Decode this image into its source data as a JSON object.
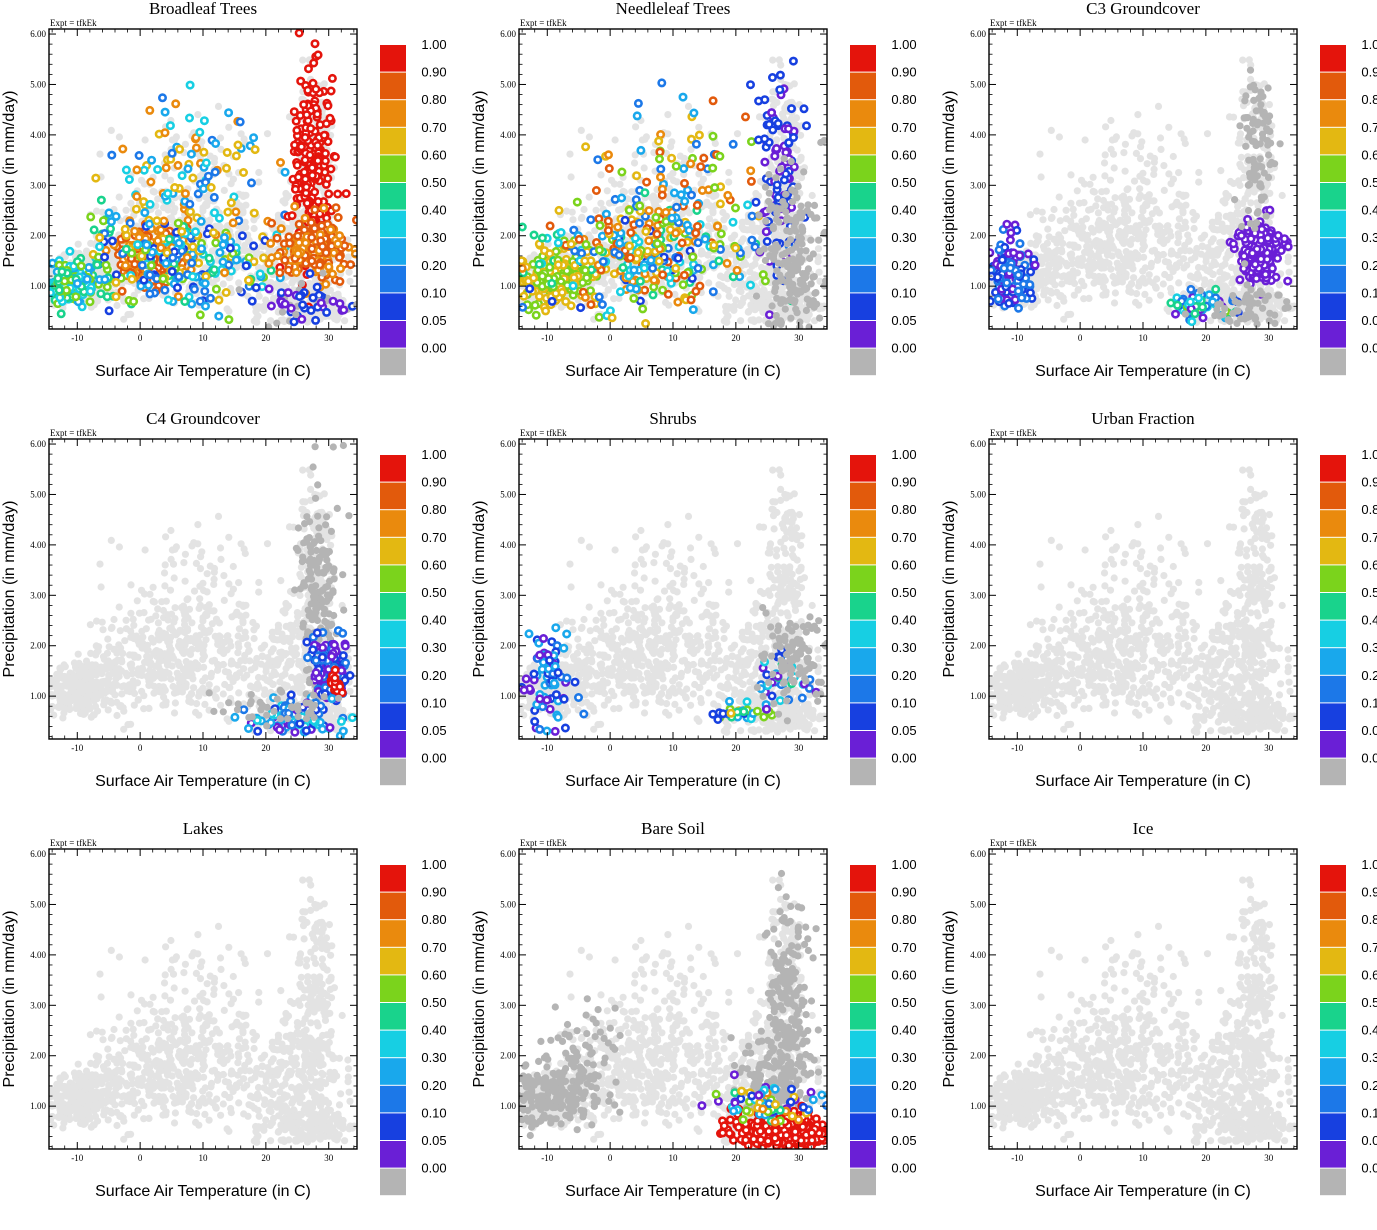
{
  "figure": {
    "expt_label": "Expt = tfkEk",
    "xlabel": "Surface Air Temperature (in C)",
    "ylabel": "Precipitation (in mm/day)"
  },
  "colorbar": {
    "levels": [
      "0.00",
      "0.05",
      "0.10",
      "0.20",
      "0.30",
      "0.40",
      "0.50",
      "0.60",
      "0.70",
      "0.80",
      "0.90",
      "1.00"
    ],
    "colors": [
      "#b4b4b4",
      "#6a1fd6",
      "#1740e0",
      "#1c78e8",
      "#19a8ec",
      "#17cfe3",
      "#19d38c",
      "#7bd31c",
      "#e3b812",
      "#ea8a0d",
      "#e25a0c",
      "#e4140c"
    ],
    "background_point_color": "#e3e3e3"
  },
  "chart_data": [
    {
      "type": "scatter",
      "title": "Broadleaf Trees",
      "xlim": [
        -14.5,
        34.5
      ],
      "ylim": [
        0.15,
        6.1
      ],
      "xticks": [
        -10,
        0,
        10,
        20,
        30
      ],
      "yticks": [
        "1.00",
        "2.00",
        "3.00",
        "4.00",
        "5.00",
        "6.00"
      ],
      "clusters": [
        {
          "x": -11,
          "y": 1.05,
          "sx": 2.5,
          "sy": 0.22,
          "n": 180,
          "colors": [
            4,
            5,
            6,
            7
          ]
        },
        {
          "x": 2,
          "y": 1.6,
          "sx": 2.8,
          "sy": 0.3,
          "n": 260,
          "colors": [
            9,
            10
          ]
        },
        {
          "x": 6,
          "y": 1.5,
          "sx": 8,
          "sy": 0.5,
          "n": 220,
          "colors": [
            2,
            3,
            4,
            5,
            6,
            7,
            8
          ]
        },
        {
          "x": 8,
          "y": 3.0,
          "sx": 6,
          "sy": 0.9,
          "n": 120,
          "colors": [
            3,
            4,
            5,
            8,
            9
          ]
        },
        {
          "x": 27.5,
          "y": 3.2,
          "sx": 1.6,
          "sy": 1.0,
          "n": 220,
          "colors": [
            11
          ]
        },
        {
          "x": 28,
          "y": 1.7,
          "sx": 2.8,
          "sy": 0.3,
          "n": 200,
          "colors": [
            9,
            10
          ]
        },
        {
          "x": 26,
          "y": 0.7,
          "sx": 3.5,
          "sy": 0.25,
          "n": 60,
          "colors": [
            0,
            1,
            2
          ]
        }
      ]
    },
    {
      "type": "scatter",
      "title": "Needleleaf Trees",
      "xlim": [
        -14.5,
        34.5
      ],
      "ylim": [
        0.15,
        6.1
      ],
      "xticks": [
        -10,
        0,
        10,
        20,
        30
      ],
      "yticks": [
        "1.00",
        "2.00",
        "3.00",
        "4.00",
        "5.00",
        "6.00"
      ],
      "clusters": [
        {
          "x": -9,
          "y": 1.15,
          "sx": 3.2,
          "sy": 0.25,
          "n": 240,
          "colors": [
            7,
            8
          ]
        },
        {
          "x": 5,
          "y": 1.6,
          "sx": 9,
          "sy": 0.55,
          "n": 260,
          "colors": [
            2,
            3,
            4,
            5,
            6,
            7,
            8,
            9,
            10
          ]
        },
        {
          "x": 10,
          "y": 2.9,
          "sx": 6,
          "sy": 0.9,
          "n": 120,
          "colors": [
            3,
            4,
            7,
            8,
            9,
            10
          ]
        },
        {
          "x": 27,
          "y": 3.3,
          "sx": 1.6,
          "sy": 1.0,
          "n": 100,
          "colors": [
            1,
            2
          ]
        },
        {
          "x": 29,
          "y": 1.6,
          "sx": 2.5,
          "sy": 0.9,
          "n": 200,
          "colors": [
            0
          ]
        }
      ]
    },
    {
      "type": "scatter",
      "title": "C3 Groundcover",
      "xlim": [
        -14.5,
        34.5
      ],
      "ylim": [
        0.15,
        6.1
      ],
      "xticks": [
        -10,
        0,
        10,
        20,
        30
      ],
      "yticks": [
        "1.00",
        "2.00",
        "3.00",
        "4.00",
        "5.00",
        "6.00"
      ],
      "clusters": [
        {
          "x": -11,
          "y": 1.3,
          "sx": 2.0,
          "sy": 0.35,
          "n": 140,
          "colors": [
            1,
            2,
            3
          ]
        },
        {
          "x": 28.5,
          "y": 1.7,
          "sx": 1.6,
          "sy": 0.3,
          "n": 220,
          "colors": [
            1
          ]
        },
        {
          "x": 19,
          "y": 0.6,
          "sx": 3.0,
          "sy": 0.15,
          "n": 60,
          "colors": [
            1,
            2,
            3,
            4,
            5,
            6,
            7
          ]
        },
        {
          "x": 28,
          "y": 3.8,
          "sx": 1.3,
          "sy": 0.9,
          "n": 90,
          "colors": [
            0
          ]
        },
        {
          "x": 26,
          "y": 0.6,
          "sx": 4.0,
          "sy": 0.2,
          "n": 60,
          "colors": [
            0
          ]
        }
      ]
    },
    {
      "type": "scatter",
      "title": "C4 Groundcover",
      "xlim": [
        -14.5,
        34.5
      ],
      "ylim": [
        0.15,
        6.1
      ],
      "xticks": [
        -10,
        0,
        10,
        20,
        30
      ],
      "yticks": [
        "1.00",
        "2.00",
        "3.00",
        "4.00",
        "5.00",
        "6.00"
      ],
      "clusters": [
        {
          "x": 28.5,
          "y": 3.0,
          "sx": 1.6,
          "sy": 1.1,
          "n": 180,
          "colors": [
            0
          ]
        },
        {
          "x": 30,
          "y": 1.55,
          "sx": 1.6,
          "sy": 0.3,
          "n": 160,
          "colors": [
            1,
            2,
            3
          ]
        },
        {
          "x": 25,
          "y": 0.55,
          "sx": 4.0,
          "sy": 0.2,
          "n": 90,
          "colors": [
            1,
            2,
            3,
            4,
            5
          ]
        },
        {
          "x": 31,
          "y": 1.3,
          "sx": 0.6,
          "sy": 0.15,
          "n": 12,
          "colors": [
            11
          ]
        },
        {
          "x": 22,
          "y": 0.8,
          "sx": 4.0,
          "sy": 0.25,
          "n": 40,
          "colors": [
            0
          ]
        }
      ]
    },
    {
      "type": "scatter",
      "title": "Shrubs",
      "xlim": [
        -14.5,
        34.5
      ],
      "ylim": [
        0.15,
        6.1
      ],
      "xticks": [
        -10,
        0,
        10,
        20,
        30
      ],
      "yticks": [
        "1.00",
        "2.00",
        "3.00",
        "4.00",
        "5.00",
        "6.00"
      ],
      "clusters": [
        {
          "x": -10,
          "y": 1.3,
          "sx": 2.2,
          "sy": 0.45,
          "n": 80,
          "colors": [
            1,
            2,
            3,
            4
          ]
        },
        {
          "x": 21,
          "y": 0.65,
          "sx": 3.0,
          "sy": 0.12,
          "n": 30,
          "colors": [
            2,
            3,
            4,
            5,
            6,
            7,
            8
          ]
        },
        {
          "x": 28,
          "y": 1.3,
          "sx": 2.5,
          "sy": 0.25,
          "n": 40,
          "colors": [
            1,
            2,
            3,
            4,
            5,
            6
          ]
        },
        {
          "x": 29,
          "y": 1.8,
          "sx": 2.5,
          "sy": 0.5,
          "n": 100,
          "colors": [
            0
          ]
        }
      ]
    },
    {
      "type": "scatter",
      "title": "Urban Fraction",
      "xlim": [
        -14.5,
        34.5
      ],
      "ylim": [
        0.15,
        6.1
      ],
      "xticks": [
        -10,
        0,
        10,
        20,
        30
      ],
      "yticks": [
        "1.00",
        "2.00",
        "3.00",
        "4.00",
        "5.00",
        "6.00"
      ],
      "clusters": []
    },
    {
      "type": "scatter",
      "title": "Lakes",
      "xlim": [
        -14.5,
        34.5
      ],
      "ylim": [
        0.15,
        6.1
      ],
      "xticks": [
        -10,
        0,
        10,
        20,
        30
      ],
      "yticks": [
        "1.00",
        "2.00",
        "3.00",
        "4.00",
        "5.00",
        "6.00"
      ],
      "clusters": []
    },
    {
      "type": "scatter",
      "title": "Bare Soil",
      "xlim": [
        -14.5,
        34.5
      ],
      "ylim": [
        0.15,
        6.1
      ],
      "xticks": [
        -10,
        0,
        10,
        20,
        30
      ],
      "yticks": [
        "1.00",
        "2.00",
        "3.00",
        "4.00",
        "5.00",
        "6.00"
      ],
      "clusters": [
        {
          "x": -9,
          "y": 1.2,
          "sx": 3.5,
          "sy": 0.3,
          "n": 200,
          "colors": [
            0
          ]
        },
        {
          "x": -4,
          "y": 2.2,
          "sx": 3.0,
          "sy": 0.5,
          "n": 60,
          "colors": [
            0
          ]
        },
        {
          "x": 28.5,
          "y": 2.8,
          "sx": 1.6,
          "sy": 1.2,
          "n": 200,
          "colors": [
            0
          ]
        },
        {
          "x": 26,
          "y": 1.6,
          "sx": 3.0,
          "sy": 0.4,
          "n": 120,
          "colors": [
            0
          ]
        },
        {
          "x": 27,
          "y": 0.5,
          "sx": 4.0,
          "sy": 0.2,
          "n": 320,
          "colors": [
            11
          ]
        },
        {
          "x": 25,
          "y": 1.05,
          "sx": 4.0,
          "sy": 0.18,
          "n": 70,
          "colors": [
            1,
            2,
            3,
            4,
            5,
            6,
            7,
            8,
            9
          ]
        }
      ]
    },
    {
      "type": "scatter",
      "title": "Ice",
      "xlim": [
        -14.5,
        34.5
      ],
      "ylim": [
        0.15,
        6.1
      ],
      "xticks": [
        -10,
        0,
        10,
        20,
        30
      ],
      "yticks": [
        "1.00",
        "2.00",
        "3.00",
        "4.00",
        "5.00",
        "6.00"
      ],
      "clusters": []
    }
  ]
}
